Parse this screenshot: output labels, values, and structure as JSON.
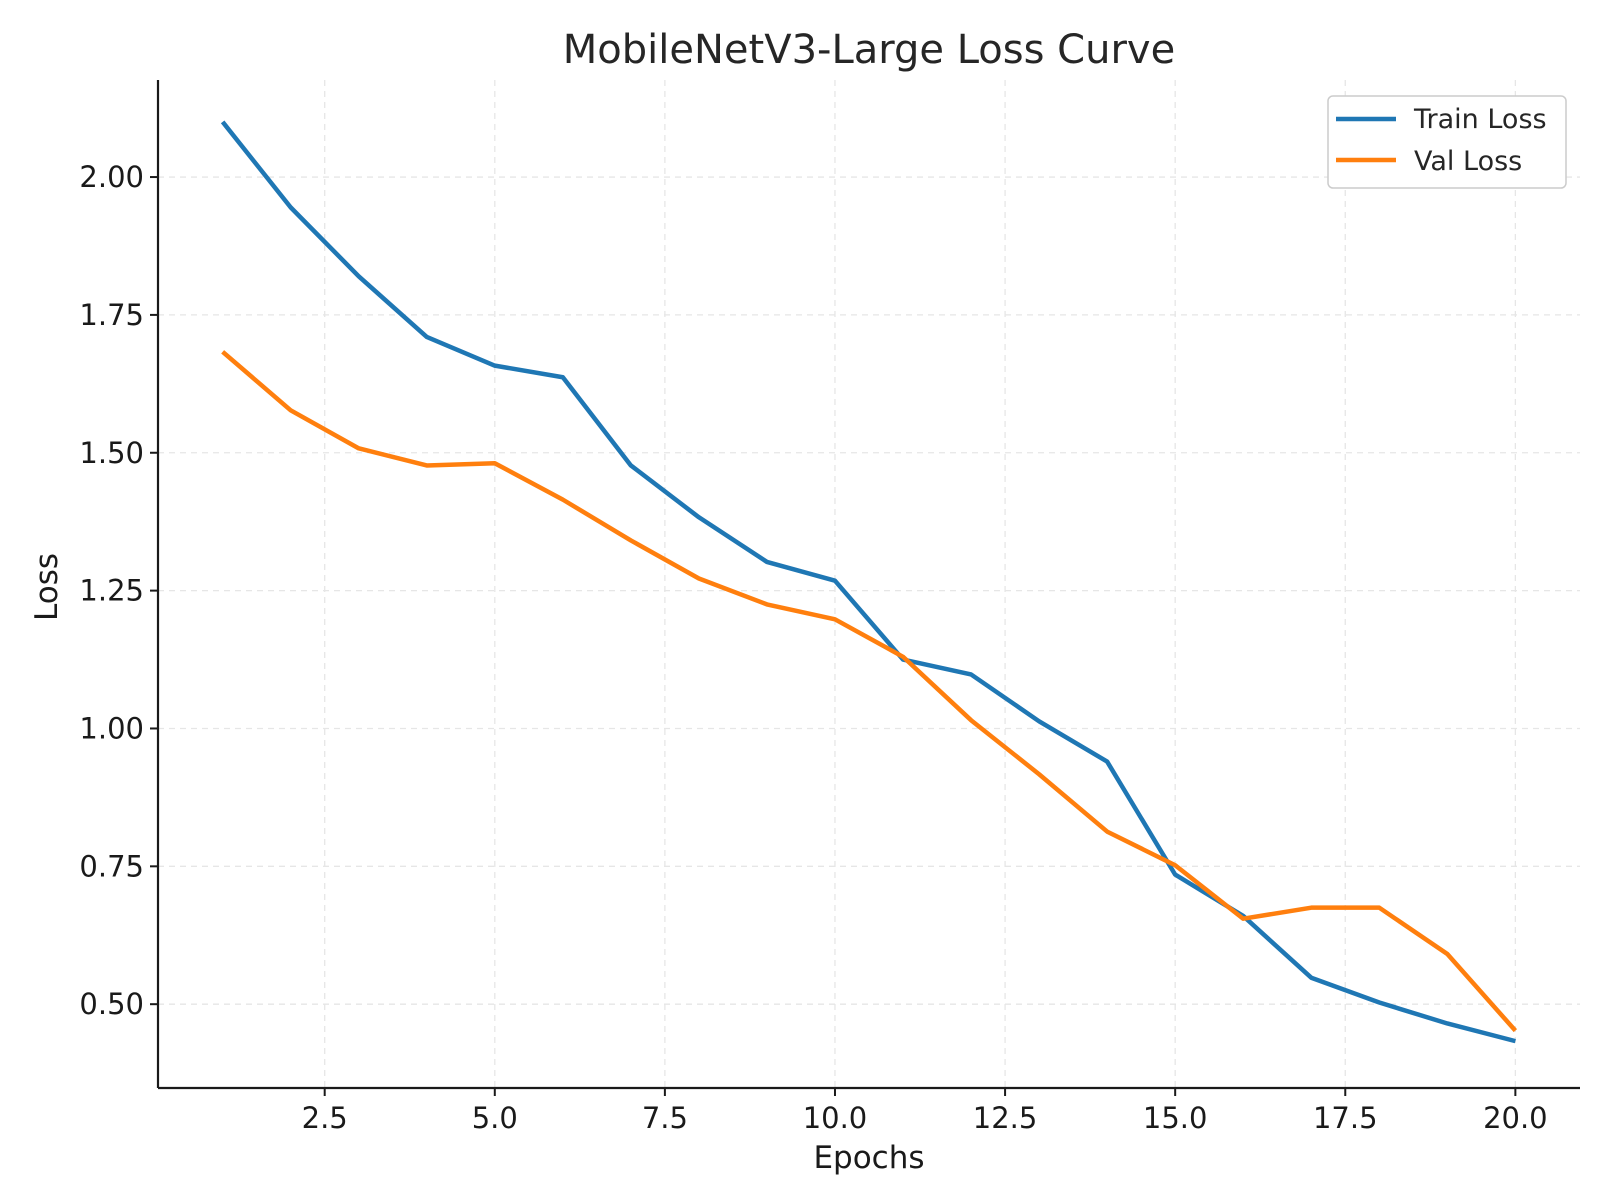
{
  "chart_data": {
    "type": "line",
    "title": "MobileNetV3-Large Loss Curve",
    "xlabel": "Epochs",
    "ylabel": "Loss",
    "x": [
      1,
      2,
      3,
      4,
      5,
      6,
      7,
      8,
      9,
      10,
      11,
      12,
      13,
      14,
      15,
      16,
      17,
      18,
      19,
      20
    ],
    "xlim": [
      0.05,
      20.95
    ],
    "ylim": [
      0.348,
      2.176
    ],
    "x_ticks": [
      2.5,
      5.0,
      7.5,
      10.0,
      12.5,
      15.0,
      17.5,
      20.0
    ],
    "x_tick_labels": [
      "2.5",
      "5.0",
      "7.5",
      "10.0",
      "12.5",
      "15.0",
      "17.5",
      "20.0"
    ],
    "y_ticks": [
      0.5,
      0.75,
      1.0,
      1.25,
      1.5,
      1.75,
      2.0
    ],
    "y_tick_labels": [
      "0.50",
      "0.75",
      "1.00",
      "1.25",
      "1.50",
      "1.75",
      "2.00"
    ],
    "grid": true,
    "legend_position": "top-right",
    "series": [
      {
        "name": "Train Loss",
        "color": "#1f77b4",
        "values": [
          2.1,
          1.945,
          1.82,
          1.71,
          1.658,
          1.637,
          1.477,
          1.383,
          1.302,
          1.268,
          1.125,
          1.098,
          1.013,
          0.94,
          0.735,
          0.66,
          0.548,
          0.503,
          0.465,
          0.433
        ]
      },
      {
        "name": "Val Loss",
        "color": "#ff7f0e",
        "values": [
          1.683,
          1.577,
          1.508,
          1.477,
          1.481,
          1.415,
          1.341,
          1.272,
          1.225,
          1.198,
          1.13,
          1.015,
          0.917,
          0.813,
          0.752,
          0.655,
          0.675,
          0.675,
          0.591,
          0.452
        ]
      }
    ]
  }
}
